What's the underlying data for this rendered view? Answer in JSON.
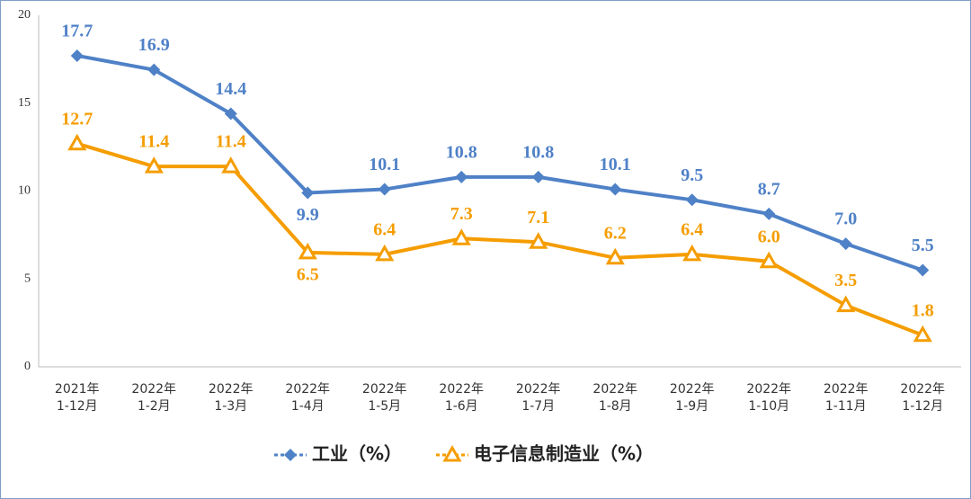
{
  "chart_data": {
    "type": "line",
    "categories": [
      [
        "2021年",
        "1-12月"
      ],
      [
        "2022年",
        "1-2月"
      ],
      [
        "2022年",
        "1-3月"
      ],
      [
        "2022年",
        "1-4月"
      ],
      [
        "2022年",
        "1-5月"
      ],
      [
        "2022年",
        "1-6月"
      ],
      [
        "2022年",
        "1-7月"
      ],
      [
        "2022年",
        "1-8月"
      ],
      [
        "2022年",
        "1-9月"
      ],
      [
        "2022年",
        "1-10月"
      ],
      [
        "2022年",
        "1-11月"
      ],
      [
        "2022年",
        "1-12月"
      ]
    ],
    "series": [
      {
        "name": "工业（%）",
        "color": "#4f81c7",
        "marker": "diamond",
        "values": [
          17.7,
          16.9,
          14.4,
          9.9,
          10.1,
          10.8,
          10.8,
          10.1,
          9.5,
          8.7,
          7.0,
          5.5
        ],
        "value_labels": [
          "17.7",
          "16.9",
          "14.4",
          "9.9",
          "10.1",
          "10.8",
          "10.8",
          "10.1",
          "9.5",
          "8.7",
          "7.0",
          "5.5"
        ]
      },
      {
        "name": "电子信息制造业（%）",
        "color": "#f59d00",
        "marker": "triangle",
        "values": [
          12.7,
          11.4,
          11.4,
          6.5,
          6.4,
          7.3,
          7.1,
          6.2,
          6.4,
          6.0,
          3.5,
          1.8
        ],
        "value_labels": [
          "12.7",
          "11.4",
          "11.4",
          "6.5",
          "6.4",
          "7.3",
          "7.1",
          "6.2",
          "6.4",
          "6.0",
          "3.5",
          "1.8"
        ]
      }
    ],
    "ylim": [
      0,
      20
    ],
    "yticks": [
      0,
      5,
      10,
      15,
      20
    ],
    "grid": false,
    "legend": "bottom"
  }
}
